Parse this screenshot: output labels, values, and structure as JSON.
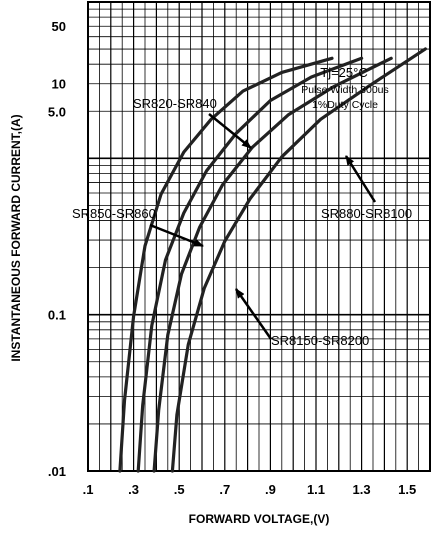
{
  "chart_data": {
    "type": "line",
    "xlabel": "FORWARD VOLTAGE,(V)",
    "ylabel": "INSTANTANEOUS FORWARD CURRENT,(A)",
    "x_tick_labels": [
      ".1",
      ".3",
      ".5",
      ".7",
      ".9",
      "1.1",
      "1.3",
      "1.5"
    ],
    "x_ticks": [
      0.1,
      0.3,
      0.5,
      0.7,
      0.9,
      1.1,
      1.3,
      1.5
    ],
    "xlim": [
      0.1,
      1.6
    ],
    "y_tick_labels": [
      ".01",
      "0.1",
      "5.0",
      "10",
      "50"
    ],
    "y_scale": "log-style (non-uniform tick labels as printed)",
    "grid": true,
    "conditions": {
      "line1": "Tj=25°C",
      "line2": "Pulse Width 300us",
      "line3": "1%Duty Cycle"
    },
    "series": [
      {
        "name": "SR820-SR840",
        "color": "#222222",
        "points": [
          [
            0.24,
            0.0
          ],
          [
            0.26,
            0.15
          ],
          [
            0.3,
            0.33
          ],
          [
            0.35,
            0.48
          ],
          [
            0.42,
            0.59
          ],
          [
            0.52,
            0.68
          ],
          [
            0.64,
            0.75
          ],
          [
            0.78,
            0.81
          ],
          [
            0.95,
            0.85
          ],
          [
            1.17,
            0.88
          ]
        ]
      },
      {
        "name": "SR850-SR860",
        "color": "#222222",
        "points": [
          [
            0.32,
            0.0
          ],
          [
            0.34,
            0.14
          ],
          [
            0.38,
            0.31
          ],
          [
            0.44,
            0.45
          ],
          [
            0.52,
            0.55
          ],
          [
            0.62,
            0.64
          ],
          [
            0.75,
            0.72
          ],
          [
            0.9,
            0.79
          ],
          [
            1.08,
            0.84
          ],
          [
            1.3,
            0.88
          ]
        ]
      },
      {
        "name": "SR880-SR8100",
        "color": "#222222",
        "points": [
          [
            0.39,
            0.0
          ],
          [
            0.41,
            0.13
          ],
          [
            0.45,
            0.29
          ],
          [
            0.51,
            0.42
          ],
          [
            0.59,
            0.52
          ],
          [
            0.69,
            0.61
          ],
          [
            0.82,
            0.69
          ],
          [
            0.98,
            0.76
          ],
          [
            1.18,
            0.82
          ],
          [
            1.43,
            0.88
          ]
        ]
      },
      {
        "name": "SR8150-SR8200",
        "color": "#222222",
        "points": [
          [
            0.47,
            0.0
          ],
          [
            0.49,
            0.12
          ],
          [
            0.54,
            0.27
          ],
          [
            0.61,
            0.39
          ],
          [
            0.7,
            0.49
          ],
          [
            0.81,
            0.58
          ],
          [
            0.95,
            0.67
          ],
          [
            1.12,
            0.75
          ],
          [
            1.33,
            0.82
          ],
          [
            1.58,
            0.9
          ]
        ]
      }
    ]
  }
}
